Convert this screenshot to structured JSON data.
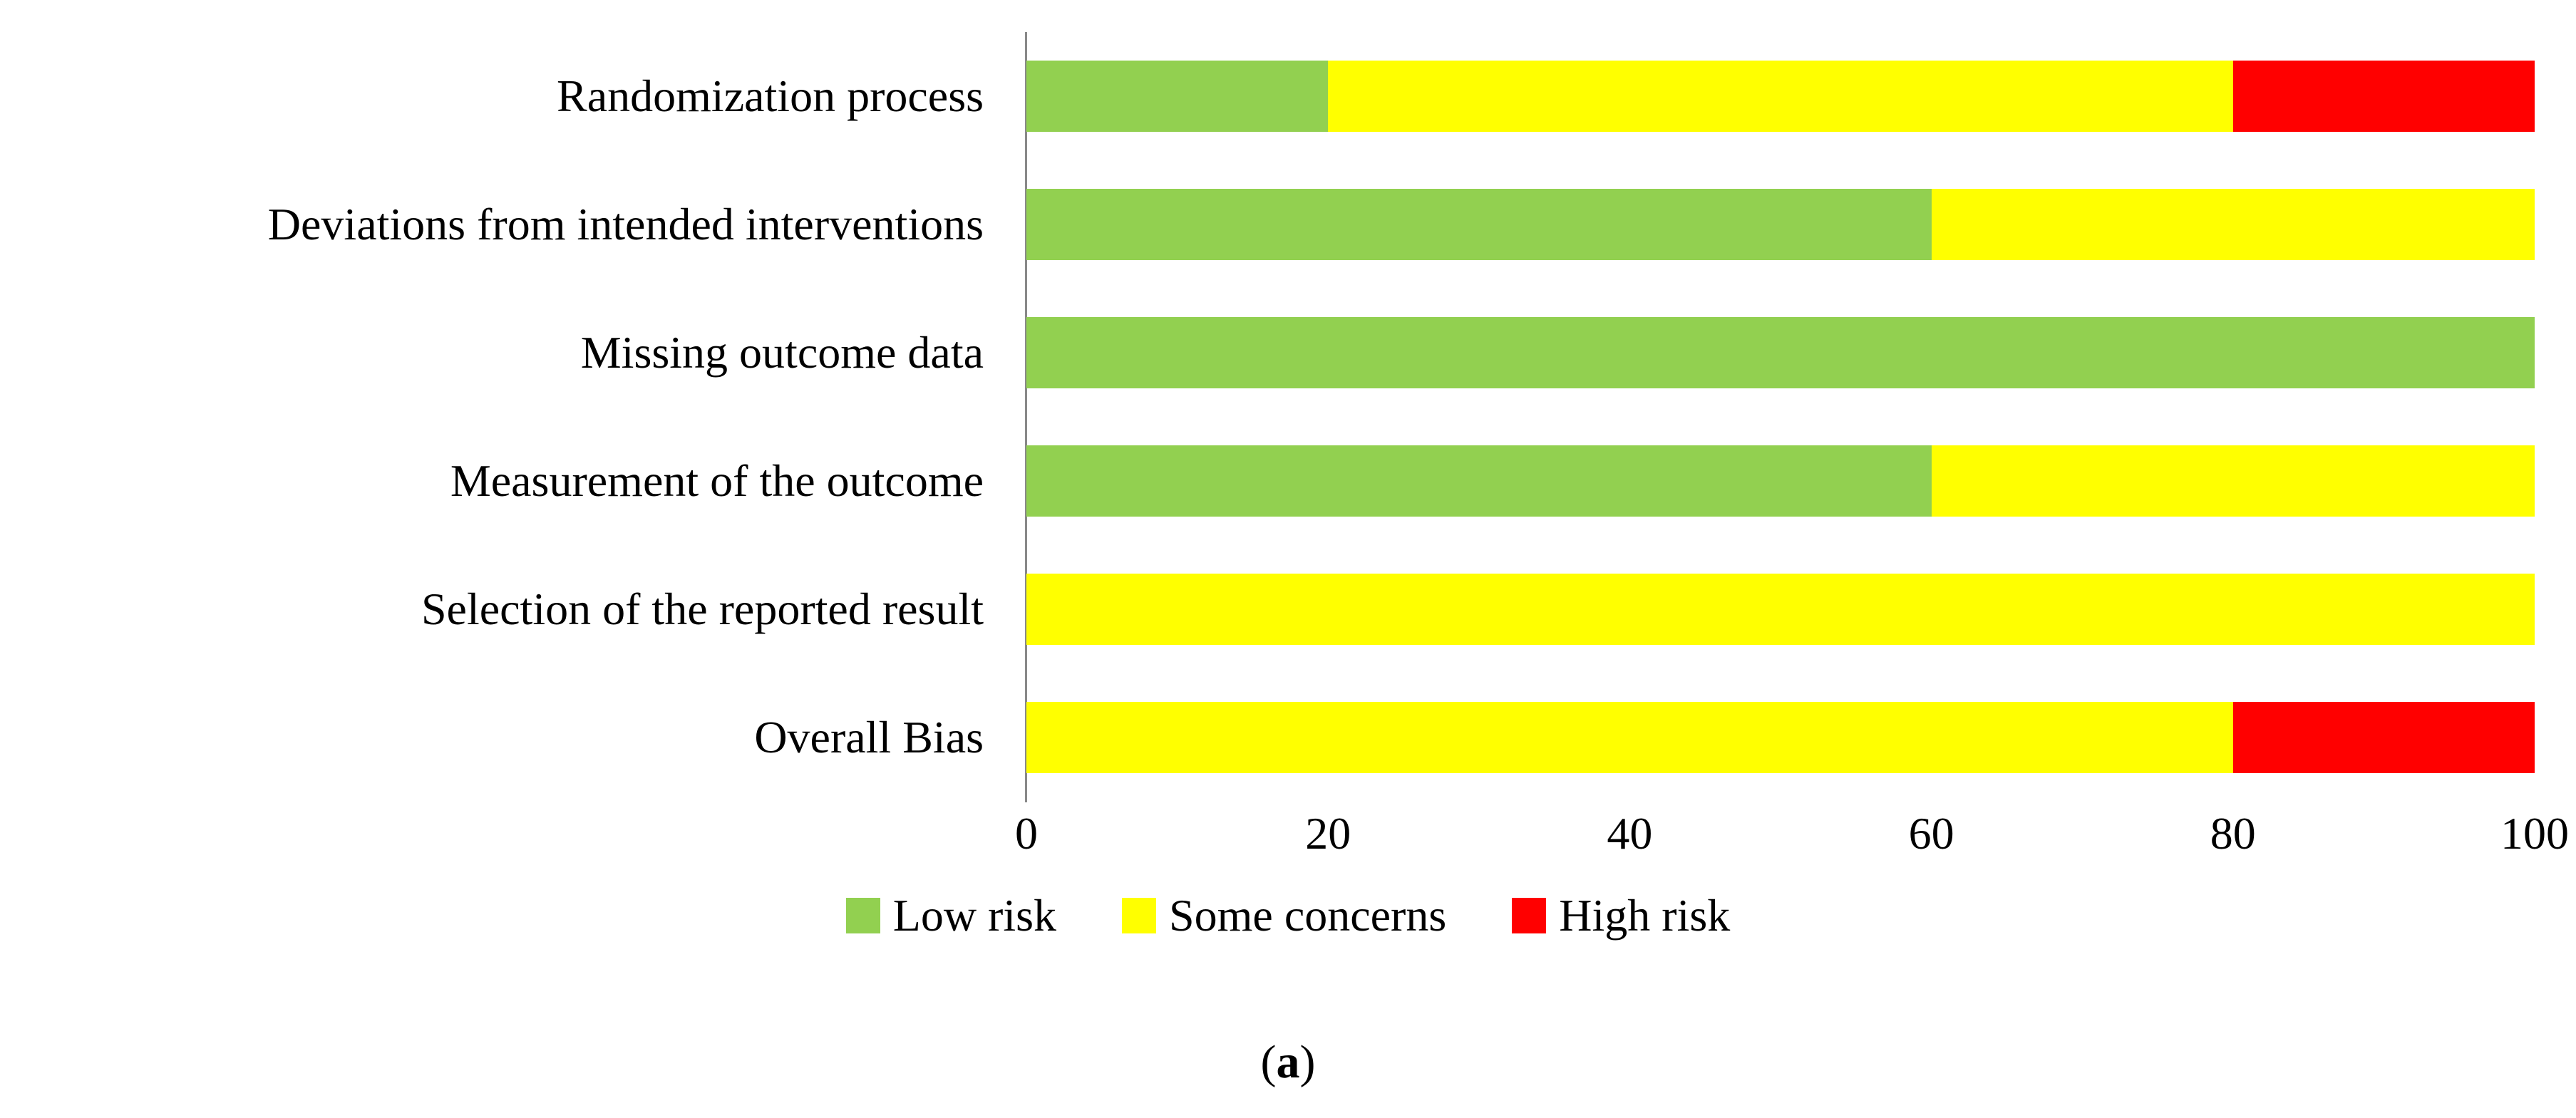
{
  "chart_data": {
    "type": "bar",
    "orientation": "horizontal",
    "stacked": true,
    "grid": false,
    "categories": [
      "Randomization process",
      "Deviations from intended interventions",
      "Missing outcome data",
      "Measurement of the outcome",
      "Selection of the reported result",
      "Overall Bias"
    ],
    "series": [
      {
        "name": "Low risk",
        "color": "#92D050",
        "values": [
          20,
          60,
          100,
          60,
          0,
          0
        ]
      },
      {
        "name": "Some concerns",
        "color": "#FFFF00",
        "values": [
          60,
          40,
          0,
          40,
          100,
          80
        ]
      },
      {
        "name": "High risk",
        "color": "#FF0000",
        "values": [
          20,
          0,
          0,
          0,
          0,
          20
        ]
      }
    ],
    "x_axis": {
      "min": 0,
      "max": 100,
      "ticks": [
        0,
        20,
        40,
        60,
        80,
        100
      ]
    },
    "legend_position": "bottom"
  },
  "caption": {
    "open": "(",
    "letter": "a",
    "close": ")"
  },
  "colors": {
    "axis_line": "#898989",
    "background": "#FFFFFF",
    "text": "#000000"
  }
}
